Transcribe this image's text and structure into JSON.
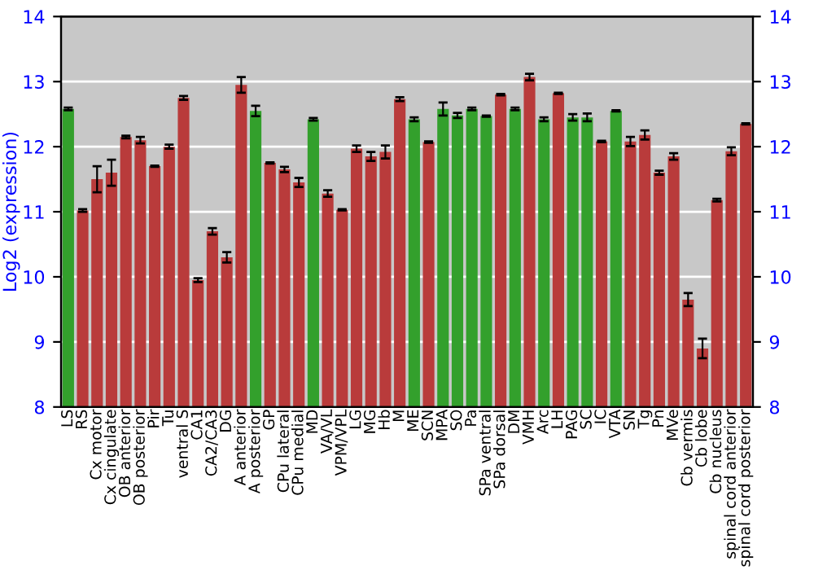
{
  "chart_data": {
    "type": "bar",
    "ylabel": "Log2 (expression)",
    "categories": [
      "LS",
      "RS",
      "Cx motor",
      "Cx cingulate",
      "OB anterior",
      "OB posterior",
      "Pir",
      "Tu",
      "ventral S",
      "CA1",
      "CA2/CA3",
      "DG",
      "A anterior",
      "A posterior",
      "GP",
      "CPu lateral",
      "CPu medial",
      "MD",
      "VA/VL",
      "VPM/VPL",
      "LG",
      "MG",
      "Hb",
      "M",
      "ME",
      "SCN",
      "MPA",
      "SO",
      "Pa",
      "SPa ventral",
      "SPa dorsal",
      "DM",
      "VMH",
      "Arc",
      "LH",
      "PAG",
      "SC",
      "IC",
      "VTA",
      "SN",
      "Tg",
      "Pn",
      "MVe",
      "Cb vermis",
      "Cb lobe",
      "Cb nucleus",
      "spinal cord anterior",
      "spinal cord posterior"
    ],
    "values": [
      12.58,
      11.02,
      11.5,
      11.6,
      12.15,
      12.1,
      11.7,
      12.0,
      12.75,
      9.95,
      10.7,
      10.3,
      12.95,
      12.55,
      11.75,
      11.65,
      11.45,
      12.42,
      11.28,
      11.03,
      11.97,
      11.85,
      11.92,
      12.73,
      12.42,
      12.07,
      12.58,
      12.48,
      12.58,
      12.47,
      12.8,
      12.58,
      13.07,
      12.42,
      12.82,
      12.45,
      12.45,
      12.08,
      12.55,
      12.08,
      12.18,
      11.6,
      11.85,
      9.65,
      8.9,
      11.18,
      11.93,
      12.35
    ],
    "errors": [
      0.02,
      0.02,
      0.2,
      0.2,
      0.02,
      0.05,
      0.01,
      0.03,
      0.03,
      0.03,
      0.05,
      0.08,
      0.12,
      0.08,
      0.01,
      0.04,
      0.07,
      0.02,
      0.05,
      0.01,
      0.05,
      0.07,
      0.1,
      0.03,
      0.03,
      0.01,
      0.1,
      0.04,
      0.02,
      0.01,
      0.01,
      0.02,
      0.05,
      0.03,
      0.01,
      0.05,
      0.06,
      0.01,
      0.01,
      0.07,
      0.07,
      0.03,
      0.05,
      0.1,
      0.15,
      0.02,
      0.06,
      0.01
    ],
    "colors": [
      "#33a02c",
      "#b93b3b",
      "#b93b3b",
      "#b93b3b",
      "#b93b3b",
      "#b93b3b",
      "#b93b3b",
      "#b93b3b",
      "#b93b3b",
      "#b93b3b",
      "#b93b3b",
      "#b93b3b",
      "#b93b3b",
      "#33a02c",
      "#b93b3b",
      "#b93b3b",
      "#b93b3b",
      "#33a02c",
      "#b93b3b",
      "#b93b3b",
      "#b93b3b",
      "#b93b3b",
      "#b93b3b",
      "#b93b3b",
      "#33a02c",
      "#b93b3b",
      "#33a02c",
      "#33a02c",
      "#33a02c",
      "#33a02c",
      "#b93b3b",
      "#33a02c",
      "#b93b3b",
      "#33a02c",
      "#b93b3b",
      "#33a02c",
      "#33a02c",
      "#b93b3b",
      "#33a02c",
      "#b93b3b",
      "#b93b3b",
      "#b93b3b",
      "#b93b3b",
      "#b93b3b",
      "#b93b3b",
      "#b93b3b",
      "#b93b3b",
      "#b93b3b"
    ],
    "ylim": [
      8,
      14
    ],
    "yticks": [
      8,
      9,
      10,
      11,
      12,
      13,
      14
    ],
    "y2lim": [
      8,
      14
    ],
    "y2ticks": [
      8,
      9,
      10,
      11,
      12,
      13,
      14
    ],
    "grid": "y"
  }
}
